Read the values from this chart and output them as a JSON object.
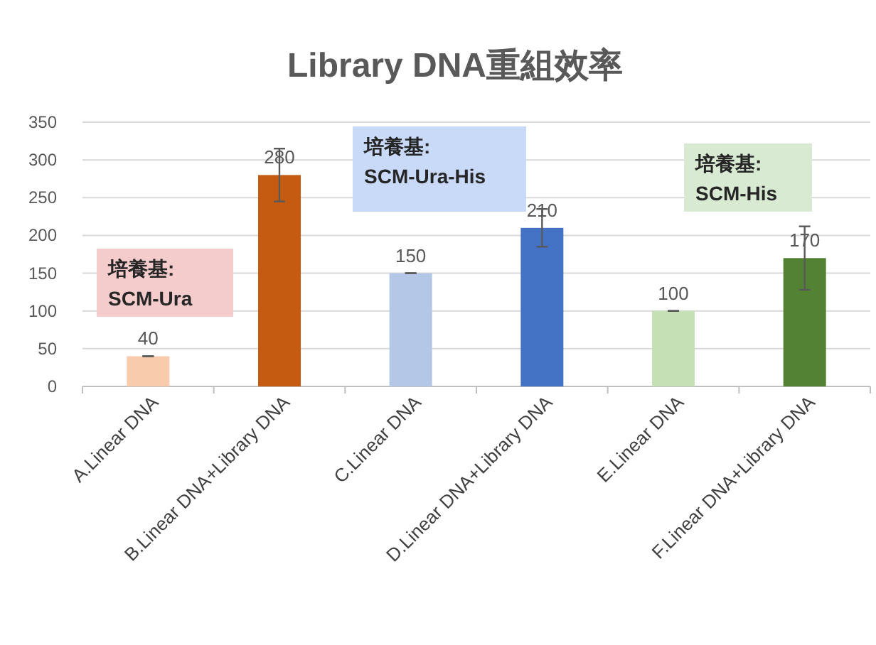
{
  "chart_data": {
    "type": "bar",
    "title": "Library DNA重組效率",
    "categories": [
      "A.Linear DNA",
      "B.Linear DNA+Library DNA",
      "C.Linear DNA",
      "D.Linear DNA+Library DNA",
      "E.Linear DNA",
      "F.Linear DNA+Library DNA"
    ],
    "values": [
      40,
      280,
      150,
      210,
      100,
      170
    ],
    "colors": [
      "#f8cbad",
      "#c55a11",
      "#b4c7e7",
      "#4472c4",
      "#c5e0b4",
      "#548235"
    ],
    "errors": [
      0,
      35,
      0,
      25,
      0,
      42
    ],
    "ylim": [
      0,
      350
    ],
    "yticks": [
      0,
      50,
      100,
      150,
      200,
      250,
      300,
      350
    ],
    "grid": "y",
    "data_labels": true,
    "annotations": [
      "培養基:\nSCM-Ura",
      "培養基:\nSCM-Ura-His",
      "培養基:\nSCM-His"
    ]
  }
}
